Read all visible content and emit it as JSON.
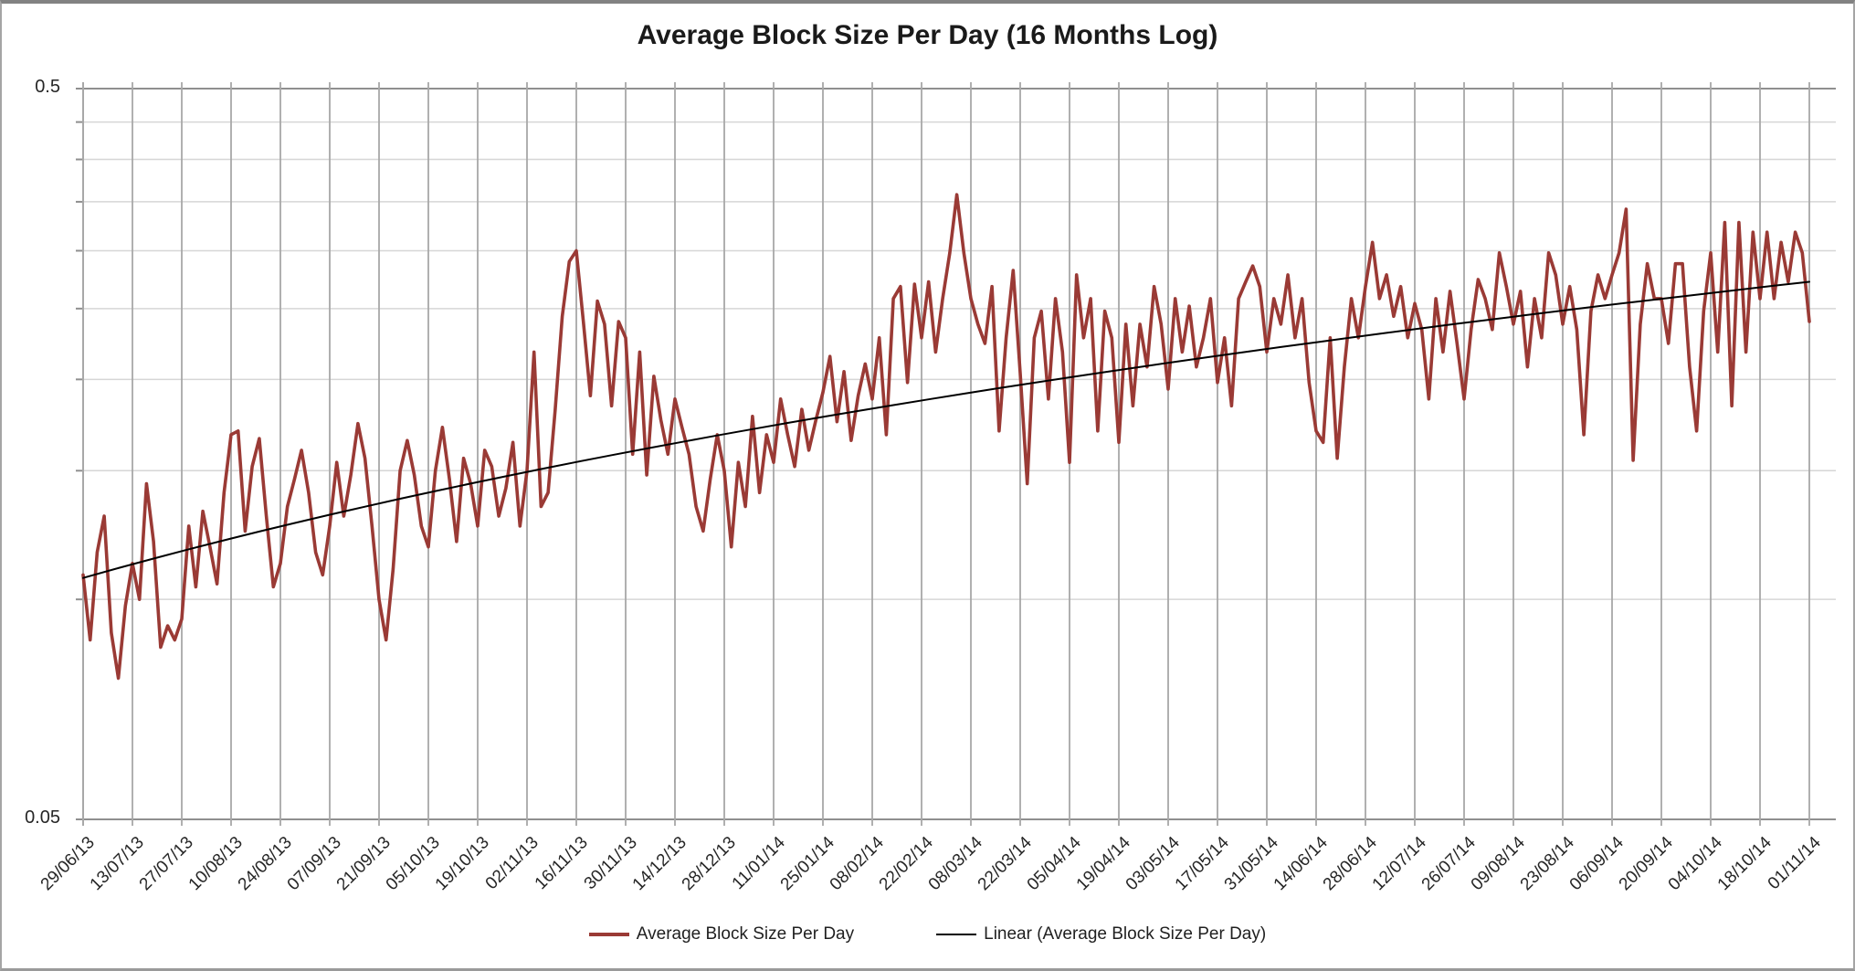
{
  "header": {
    "title": "Average Block Size Per Day (16 Months Log)"
  },
  "legend": {
    "series_label": "Average Block Size Per Day",
    "trendline_label": "Linear (Average Block Size Per Day)"
  },
  "chart_data": {
    "type": "line",
    "title": "Average Block Size Per Day (16 Months Log)",
    "xlabel": "",
    "ylabel": "",
    "legend_position": "bottom",
    "grid": {
      "horizontal_color": "#d6d6d6",
      "vertical_color": "#a8a8a8",
      "axis_color": "#8f8f8f"
    },
    "y_axis": {
      "scale": "log",
      "min": 0.05,
      "max": 0.5,
      "max_label": "0.5",
      "min_label": "0.05",
      "gridline_values": [
        0.5,
        0.45,
        0.4,
        0.35,
        0.3,
        0.25,
        0.2,
        0.15,
        0.1,
        0.05
      ]
    },
    "x_tick_interval_days": 14,
    "x_labels": [
      "29/06/13",
      "13/07/13",
      "27/07/13",
      "10/08/13",
      "24/08/13",
      "07/09/13",
      "21/09/13",
      "05/10/13",
      "19/10/13",
      "02/11/13",
      "16/11/13",
      "30/11/13",
      "14/12/13",
      "28/12/13",
      "11/01/14",
      "25/01/14",
      "08/02/14",
      "22/02/14",
      "08/03/14",
      "22/03/14",
      "05/04/14",
      "19/04/14",
      "03/05/14",
      "17/05/14",
      "31/05/14",
      "14/06/14",
      "28/06/14",
      "12/07/14",
      "26/07/14",
      "09/08/14",
      "23/08/14",
      "06/09/14",
      "20/09/14",
      "04/10/14",
      "18/10/14",
      "01/11/14"
    ],
    "series": [
      {
        "name": "Average Block Size Per Day",
        "color": "#9a3a35",
        "stroke_width": 3.6,
        "sample_interval_days": 2,
        "values": [
          0.108,
          0.088,
          0.116,
          0.13,
          0.09,
          0.078,
          0.098,
          0.112,
          0.1,
          0.144,
          0.12,
          0.086,
          0.092,
          0.088,
          0.094,
          0.126,
          0.104,
          0.132,
          0.118,
          0.105,
          0.14,
          0.168,
          0.17,
          0.124,
          0.152,
          0.166,
          0.13,
          0.104,
          0.112,
          0.134,
          0.146,
          0.16,
          0.14,
          0.116,
          0.108,
          0.126,
          0.154,
          0.13,
          0.148,
          0.174,
          0.156,
          0.126,
          0.1,
          0.088,
          0.11,
          0.15,
          0.165,
          0.148,
          0.126,
          0.118,
          0.15,
          0.172,
          0.146,
          0.12,
          0.156,
          0.144,
          0.126,
          0.16,
          0.152,
          0.13,
          0.142,
          0.164,
          0.126,
          0.15,
          0.218,
          0.134,
          0.14,
          0.182,
          0.244,
          0.29,
          0.3,
          0.24,
          0.19,
          0.256,
          0.238,
          0.184,
          0.24,
          0.228,
          0.158,
          0.218,
          0.148,
          0.202,
          0.176,
          0.158,
          0.188,
          0.172,
          0.158,
          0.134,
          0.124,
          0.146,
          0.168,
          0.15,
          0.118,
          0.154,
          0.134,
          0.178,
          0.14,
          0.168,
          0.154,
          0.188,
          0.168,
          0.152,
          0.182,
          0.16,
          0.176,
          0.192,
          0.215,
          0.175,
          0.205,
          0.165,
          0.19,
          0.21,
          0.188,
          0.228,
          0.168,
          0.258,
          0.268,
          0.198,
          0.27,
          0.228,
          0.272,
          0.218,
          0.258,
          0.298,
          0.358,
          0.298,
          0.258,
          0.238,
          0.224,
          0.268,
          0.17,
          0.228,
          0.282,
          0.204,
          0.144,
          0.228,
          0.248,
          0.188,
          0.258,
          0.218,
          0.154,
          0.278,
          0.228,
          0.258,
          0.17,
          0.248,
          0.228,
          0.164,
          0.238,
          0.184,
          0.238,
          0.208,
          0.268,
          0.238,
          0.194,
          0.258,
          0.218,
          0.252,
          0.208,
          0.228,
          0.258,
          0.198,
          0.228,
          0.184,
          0.258,
          0.272,
          0.286,
          0.268,
          0.218,
          0.258,
          0.238,
          0.278,
          0.228,
          0.258,
          0.198,
          0.17,
          0.164,
          0.228,
          0.156,
          0.208,
          0.258,
          0.228,
          0.268,
          0.308,
          0.258,
          0.278,
          0.244,
          0.268,
          0.228,
          0.254,
          0.234,
          0.188,
          0.258,
          0.218,
          0.264,
          0.224,
          0.188,
          0.234,
          0.274,
          0.258,
          0.234,
          0.298,
          0.268,
          0.238,
          0.264,
          0.208,
          0.258,
          0.228,
          0.298,
          0.278,
          0.238,
          0.268,
          0.234,
          0.168,
          0.248,
          0.278,
          0.258,
          0.278,
          0.298,
          0.342,
          0.155,
          0.238,
          0.288,
          0.258,
          0.258,
          0.224,
          0.288,
          0.288,
          0.208,
          0.17,
          0.248,
          0.298,
          0.218,
          0.328,
          0.184,
          0.328,
          0.218,
          0.318,
          0.258,
          0.318,
          0.258,
          0.308,
          0.272,
          0.318,
          0.298,
          0.24
        ]
      },
      {
        "name": "Linear (Average Block Size Per Day)",
        "type": "linear_trendline",
        "color": "#000000",
        "stroke_width": 2,
        "start_value": 0.107,
        "end_value": 0.272
      }
    ]
  }
}
